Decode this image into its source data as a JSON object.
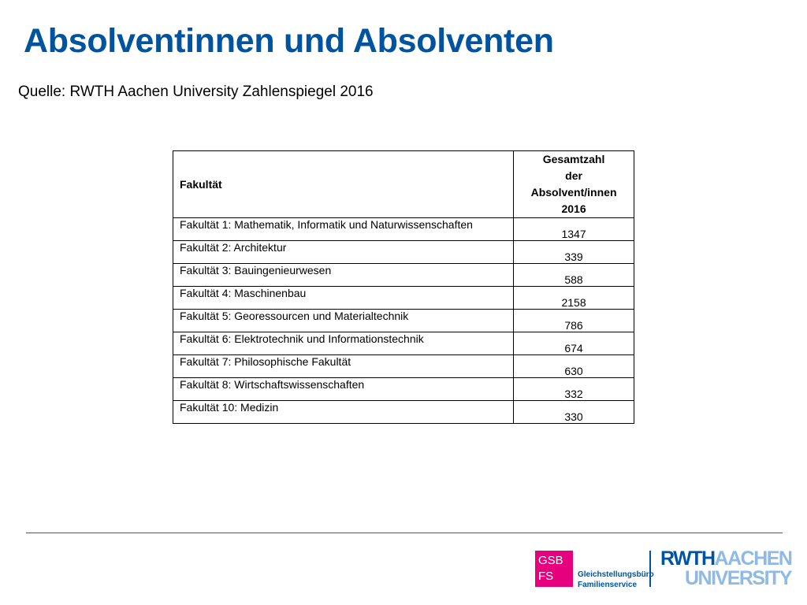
{
  "title": "Absolventinnen und Absolventen",
  "source": "Quelle: RWTH Aachen University Zahlenspiegel 2016",
  "table": {
    "header_faculty": "Fakultät",
    "header_total_lines": [
      "Gesamtzahl",
      "der",
      "Absolvent/innen",
      "2016"
    ],
    "rows": [
      {
        "faculty": "Fakultät 1: Mathematik, Informatik und Naturwissenschaften",
        "total": "1347"
      },
      {
        "faculty": "Fakultät 2: Architektur",
        "total": "339"
      },
      {
        "faculty": "Fakultät 3: Bauingenieurwesen",
        "total": "588"
      },
      {
        "faculty": "Fakultät 4: Maschinenbau",
        "total": "2158"
      },
      {
        "faculty": "Fakultät 5: Georessourcen und Materialtechnik",
        "total": "786"
      },
      {
        "faculty": "Fakultät 6: Elektrotechnik und Informationstechnik",
        "total": "674"
      },
      {
        "faculty": "Fakultät 7: Philosophische Fakultät",
        "total": "630"
      },
      {
        "faculty": "Fakultät 8: Wirtschaftswissenschaften",
        "total": "332"
      },
      {
        "faculty": "Fakultät 10: Medizin",
        "total": "330"
      }
    ]
  },
  "footer": {
    "gsb_logo_lines": [
      "GSB",
      "FS"
    ],
    "gsb_text_lines": [
      "Gleichstellungsbüro",
      "Familienservice"
    ],
    "rwth_logo": {
      "part1": "RWTH",
      "part2": "AACHEN",
      "part3": "UNIVERSITY"
    },
    "colors": {
      "brand_blue": "#00549f",
      "light_blue": "#8ebae5",
      "magenta": "#e6007e"
    }
  }
}
